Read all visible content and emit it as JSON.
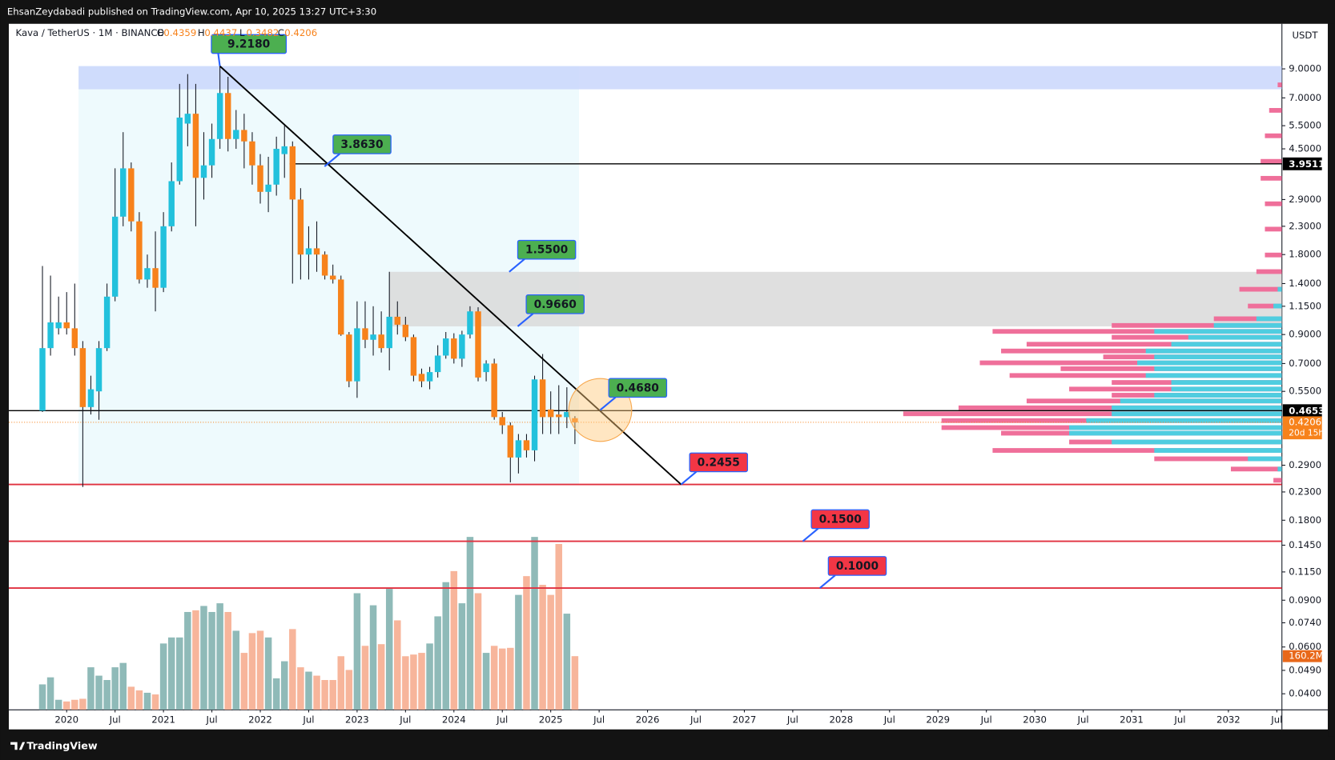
{
  "header": {
    "text": "EhsanZeydabadi published on TradingView.com, Apr 10, 2025 13:27 UTC+3:30"
  },
  "footer": {
    "brand": "TradingView"
  },
  "chart_data": {
    "type": "candlestick",
    "symbol": "Kava / TetherUS · 1M · BINANCE",
    "ohlc_letters": [
      "O",
      "H",
      "L",
      "C"
    ],
    "currency": "USDT",
    "countdown": "20d 15h",
    "log_scale": true,
    "up_color": "#22c1dc",
    "down_color": "#f7821b",
    "x": [
      "2019-10",
      "2019-11",
      "2019-12",
      "2020-01",
      "2020-02",
      "2020-03",
      "2020-04",
      "2020-05",
      "2020-06",
      "2020-07",
      "2020-08",
      "2020-09",
      "2020-10",
      "2020-11",
      "2020-12",
      "2021-01",
      "2021-02",
      "2021-03",
      "2021-04",
      "2021-05",
      "2021-06",
      "2021-07",
      "2021-08",
      "2021-09",
      "2021-10",
      "2021-11",
      "2021-12",
      "2022-01",
      "2022-02",
      "2022-03",
      "2022-04",
      "2022-05",
      "2022-06",
      "2022-07",
      "2022-08",
      "2022-09",
      "2022-10",
      "2022-11",
      "2022-12",
      "2023-01",
      "2023-02",
      "2023-03",
      "2023-04",
      "2023-05",
      "2023-06",
      "2023-07",
      "2023-08",
      "2023-09",
      "2023-10",
      "2023-11",
      "2023-12",
      "2024-01",
      "2024-02",
      "2024-03",
      "2024-04",
      "2024-05",
      "2024-06",
      "2024-07",
      "2024-08",
      "2024-09",
      "2024-10",
      "2024-11",
      "2024-12",
      "2025-01",
      "2025-02",
      "2025-03",
      "2025-04"
    ],
    "open": [
      0.465,
      0.8,
      0.95,
      1.0,
      0.95,
      0.8,
      0.48,
      0.55,
      0.8,
      1.25,
      2.5,
      3.8,
      2.4,
      1.45,
      1.6,
      1.35,
      2.3,
      3.4,
      5.6,
      6.1,
      3.5,
      3.9,
      4.9,
      7.3,
      4.9,
      5.3,
      4.8,
      3.9,
      3.1,
      3.3,
      4.3,
      4.6,
      2.9,
      1.8,
      1.9,
      1.8,
      1.5,
      1.45,
      0.9,
      0.6,
      0.95,
      0.86,
      0.9,
      0.8,
      1.05,
      0.98,
      0.88,
      0.64,
      0.6,
      0.65,
      0.75,
      0.87,
      0.73,
      0.9,
      1.1,
      0.65,
      0.7,
      0.44,
      0.41,
      0.31,
      0.36,
      0.33,
      0.61,
      0.47,
      0.45,
      0.44,
      0.4359
    ],
    "high": [
      1.63,
      1.5,
      1.25,
      1.3,
      1.4,
      0.85,
      0.63,
      0.85,
      1.4,
      3.8,
      5.2,
      4.0,
      2.6,
      1.8,
      2.2,
      2.6,
      4.0,
      7.9,
      8.6,
      7.9,
      5.2,
      5.6,
      9.218,
      8.4,
      6.3,
      6.1,
      5.2,
      4.3,
      4.2,
      5.0,
      5.5,
      4.8,
      3.2,
      2.3,
      2.4,
      1.85,
      1.65,
      1.5,
      0.92,
      1.2,
      1.2,
      1.15,
      1.1,
      1.55,
      1.2,
      1.05,
      0.9,
      0.67,
      0.68,
      0.82,
      0.92,
      0.91,
      0.93,
      1.15,
      1.14,
      0.72,
      0.73,
      0.46,
      0.42,
      0.38,
      0.38,
      0.63,
      0.76,
      0.55,
      0.58,
      0.57,
      0.4437
    ],
    "low": [
      0.46,
      0.75,
      0.9,
      0.9,
      0.75,
      0.24,
      0.45,
      0.43,
      0.78,
      1.2,
      2.3,
      2.2,
      1.4,
      1.35,
      1.1,
      1.3,
      2.2,
      3.3,
      4.6,
      2.3,
      2.9,
      3.5,
      4.5,
      4.4,
      4.5,
      3.8,
      3.3,
      2.8,
      2.6,
      3.0,
      3.5,
      1.4,
      1.45,
      1.45,
      1.55,
      1.45,
      1.4,
      0.89,
      0.57,
      0.52,
      0.8,
      0.75,
      0.77,
      0.66,
      0.9,
      0.85,
      0.6,
      0.57,
      0.56,
      0.62,
      0.73,
      0.7,
      0.68,
      0.87,
      0.6,
      0.6,
      0.43,
      0.38,
      0.25,
      0.27,
      0.31,
      0.3,
      0.38,
      0.38,
      0.38,
      0.4,
      0.3482
    ],
    "close": [
      0.8,
      1.0,
      1.0,
      0.95,
      0.8,
      0.48,
      0.56,
      0.8,
      1.25,
      2.5,
      3.8,
      2.4,
      1.45,
      1.6,
      1.35,
      2.3,
      3.4,
      5.9,
      6.1,
      3.5,
      3.9,
      4.9,
      7.3,
      4.9,
      5.3,
      4.8,
      3.9,
      3.1,
      3.3,
      4.5,
      4.6,
      2.9,
      1.8,
      1.9,
      1.8,
      1.5,
      1.45,
      0.9,
      0.6,
      0.95,
      0.86,
      0.9,
      0.8,
      1.05,
      0.98,
      0.88,
      0.63,
      0.6,
      0.65,
      0.75,
      0.87,
      0.73,
      0.9,
      1.1,
      0.62,
      0.7,
      0.44,
      0.41,
      0.31,
      0.36,
      0.33,
      0.61,
      0.44,
      0.44,
      0.44,
      0.46,
      0.4206
    ],
    "volume": {
      "values": [
        76,
        97,
        30,
        25,
        30,
        33,
        127,
        102,
        89,
        127,
        140,
        69,
        58,
        51,
        46,
        198,
        216,
        216,
        292,
        297,
        310,
        292,
        318,
        292,
        236,
        170,
        229,
        236,
        216,
        94,
        145,
        241,
        127,
        114,
        102,
        89,
        89,
        160,
        119,
        348,
        191,
        312,
        196,
        361,
        267,
        160,
        165,
        170,
        198,
        279,
        381,
        414,
        318,
        516,
        348,
        170,
        191,
        183,
        185,
        343,
        399,
        516,
        373,
        343,
        495,
        287,
        160.2
      ],
      "ylim": [
        0,
        520
      ],
      "up_color": "#8fbab8",
      "down_color": "#f7b59b",
      "last_label": "160.2M"
    },
    "xlim": [
      "2019-06",
      "2032-07"
    ],
    "xticks": [
      {
        "value": "2020-01",
        "label": "2020"
      },
      {
        "value": "2020-07",
        "label": "Jul"
      },
      {
        "value": "2021-01",
        "label": "2021"
      },
      {
        "value": "2021-07",
        "label": "Jul"
      },
      {
        "value": "2022-01",
        "label": "2022"
      },
      {
        "value": "2022-07",
        "label": "Jul"
      },
      {
        "value": "2023-01",
        "label": "2023"
      },
      {
        "value": "2023-07",
        "label": "Jul"
      },
      {
        "value": "2024-01",
        "label": "2024"
      },
      {
        "value": "2024-07",
        "label": "Jul"
      },
      {
        "value": "2025-01",
        "label": "2025"
      },
      {
        "value": "2025-07",
        "label": "Jul"
      },
      {
        "value": "2026-01",
        "label": "2026"
      },
      {
        "value": "2026-07",
        "label": "Jul"
      },
      {
        "value": "2027-01",
        "label": "2027"
      },
      {
        "value": "2027-07",
        "label": "Jul"
      },
      {
        "value": "2028-01",
        "label": "2028"
      },
      {
        "value": "2028-07",
        "label": "Jul"
      },
      {
        "value": "2029-01",
        "label": "2029"
      },
      {
        "value": "2029-07",
        "label": "Jul"
      },
      {
        "value": "2030-01",
        "label": "2030"
      },
      {
        "value": "2030-07",
        "label": "Jul"
      },
      {
        "value": "2031-01",
        "label": "2031"
      },
      {
        "value": "2031-07",
        "label": "Jul"
      },
      {
        "value": "2032-01",
        "label": "2032"
      },
      {
        "value": "2032-07",
        "label": "Jul"
      }
    ],
    "ylim": [
      0.0348,
      13.3
    ],
    "yticks": [
      {
        "value": 9,
        "label": "9.0000"
      },
      {
        "value": 7,
        "label": "7.0000"
      },
      {
        "value": 5.5,
        "label": "5.5000"
      },
      {
        "value": 4.5,
        "label": "4.5000"
      },
      {
        "value": 2.9,
        "label": "2.9000"
      },
      {
        "value": 2.3,
        "label": "2.3000"
      },
      {
        "value": 1.8,
        "label": "1.8000"
      },
      {
        "value": 1.4,
        "label": "1.4000"
      },
      {
        "value": 1.15,
        "label": "1.1500"
      },
      {
        "value": 0.9,
        "label": "0.9000"
      },
      {
        "value": 0.7,
        "label": "0.7000"
      },
      {
        "value": 0.55,
        "label": "0.5500"
      },
      {
        "value": 0.29,
        "label": "0.2900"
      },
      {
        "value": 0.23,
        "label": "0.2300"
      },
      {
        "value": 0.18,
        "label": "0.1800"
      },
      {
        "value": 0.145,
        "label": "0.1450"
      },
      {
        "value": 0.115,
        "label": "0.1150"
      },
      {
        "value": 0.09,
        "label": "0.0900"
      },
      {
        "value": 0.074,
        "label": "0.0740"
      },
      {
        "value": 0.06,
        "label": "0.0600"
      },
      {
        "value": 0.049,
        "label": "0.0490"
      },
      {
        "value": 0.04,
        "label": "0.0400"
      }
    ],
    "zones": [
      {
        "from": 7.54,
        "to": 9.218,
        "color": "#c9d6fb"
      },
      {
        "from": 0.966,
        "to": 1.55,
        "color": "#d9d9d9"
      }
    ],
    "levels": [
      {
        "value": 3.9511,
        "color": "#000000",
        "axis_label": true
      },
      {
        "value": 0.4653,
        "color": "#000000",
        "axis_label": true
      },
      {
        "value": 0.2455,
        "color": "#e0303f",
        "axis_label": false
      },
      {
        "value": 0.15,
        "color": "#e0303f",
        "axis_label": false
      },
      {
        "value": 0.1,
        "color": "#e0303f",
        "axis_label": false
      }
    ],
    "annotations": [
      {
        "value": 9.218,
        "label": "9.2180",
        "color": "#4caf50"
      },
      {
        "value": 3.863,
        "label": "3.8630",
        "color": "#4caf50"
      },
      {
        "value": 1.55,
        "label": "1.5500",
        "color": "#4caf50"
      },
      {
        "value": 0.966,
        "label": "0.9660",
        "color": "#4caf50"
      },
      {
        "value": 0.468,
        "label": "0.4680",
        "color": "#4caf50"
      },
      {
        "value": 0.2455,
        "label": "0.2455",
        "color": "#f23645"
      },
      {
        "value": 0.15,
        "label": "0.1500",
        "color": "#f23645"
      },
      {
        "value": 0.1,
        "label": "0.1000",
        "color": "#f23645"
      }
    ],
    "volume_profile": {
      "price": [
        0.254,
        0.28,
        0.306,
        0.329,
        0.354,
        0.382,
        0.401,
        0.426,
        0.452,
        0.476,
        0.505,
        0.531,
        0.56,
        0.593,
        0.63,
        0.668,
        0.703,
        0.74,
        0.779,
        0.826,
        0.877,
        0.923,
        0.972,
        1.03,
        1.15,
        1.33,
        1.55,
        1.79,
        2.24,
        2.79,
        3.48,
        4.03,
        5.03,
        6.27,
        7.82
      ],
      "total": [
        10,
        60,
        150,
        340,
        250,
        330,
        400,
        400,
        445,
        380,
        300,
        200,
        250,
        200,
        320,
        260,
        355,
        210,
        330,
        300,
        200,
        340,
        200,
        80,
        40,
        50,
        30,
        20,
        20,
        20,
        25,
        25,
        20,
        15,
        5
      ],
      "buy": [
        0,
        5,
        40,
        150,
        200,
        250,
        250,
        230,
        200,
        200,
        190,
        150,
        130,
        130,
        160,
        150,
        170,
        150,
        160,
        130,
        110,
        150,
        80,
        30,
        10,
        5,
        0,
        0,
        0,
        0,
        0,
        0,
        0,
        0,
        0
      ],
      "total_color": "#ef6f9a",
      "buy_color": "#4fcde0"
    }
  }
}
